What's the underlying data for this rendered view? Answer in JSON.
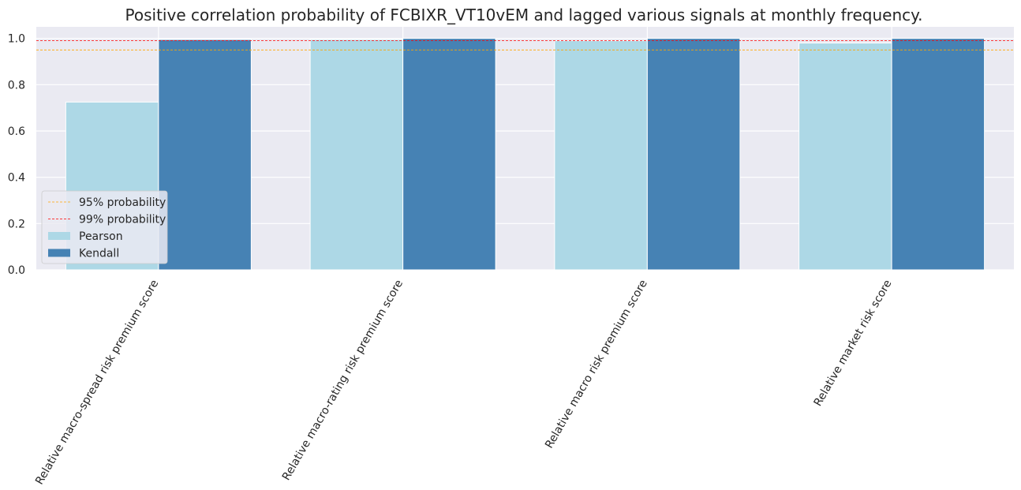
{
  "chart_data": {
    "type": "bar",
    "title": "Positive correlation probability of FCBIXR_VT10vEM and lagged various signals at monthly frequency.",
    "xlabel": "",
    "ylabel": "",
    "categories": [
      "Relative macro-spread risk premium score",
      "Relative macro-rating risk premium score",
      "Relative macro risk premium score",
      "Relative market risk score"
    ],
    "series": [
      {
        "name": "Pearson",
        "color": "#add8e6",
        "values": [
          0.725,
          0.995,
          0.99,
          0.98
        ]
      },
      {
        "name": "Kendall",
        "color": "#4682b4",
        "values": [
          0.995,
          1.0,
          1.0,
          1.0
        ]
      }
    ],
    "reference_lines": [
      {
        "name": "95% probability",
        "value": 0.95,
        "color": "#ffa500",
        "style": "dashed"
      },
      {
        "name": "99% probability",
        "value": 0.99,
        "color": "#ff0000",
        "style": "dashed"
      }
    ],
    "ylim": [
      0,
      1.05
    ],
    "yticks": [
      "0.0",
      "0.2",
      "0.4",
      "0.6",
      "0.8",
      "1.0"
    ],
    "grid": true,
    "legend_position": "lower-left",
    "background": "#eaeaf2"
  }
}
